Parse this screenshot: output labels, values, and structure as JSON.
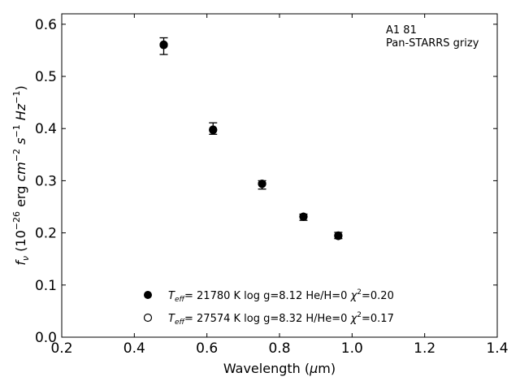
{
  "chart_data": {
    "type": "scatter",
    "annotation": {
      "line1": "A1 81",
      "line2": "Pan-STARRS grizy"
    },
    "xlabel": {
      "pre": "Wavelength (",
      "mu": "μ",
      "post": "m)"
    },
    "ylabel": {
      "f": "f",
      "nu": "ν",
      "unit_a": " (10",
      "exp_a": "−26",
      "unit_b": " erg ",
      "cm": "cm",
      "exp_b": "−2",
      "s": "s",
      "exp_c": "−1",
      "hz": "Hz",
      "exp_d": "−1",
      "close": ")"
    },
    "xlim": [
      0.2,
      1.4
    ],
    "ylim": [
      0.0,
      0.62
    ],
    "x_ticks": [
      0.2,
      0.4,
      0.6,
      0.8,
      1.0,
      1.2,
      1.4
    ],
    "x_tick_labels": [
      "0.2",
      "0.4",
      "0.6",
      "0.8",
      "1.0",
      "1.2",
      "1.4"
    ],
    "y_ticks": [
      0.0,
      0.1,
      0.2,
      0.3,
      0.4,
      0.5,
      0.6
    ],
    "y_tick_labels": [
      "0.0",
      "0.1",
      "0.2",
      "0.3",
      "0.4",
      "0.5",
      "0.6"
    ],
    "grid": false,
    "legend_placement": "bottom-center",
    "observed": {
      "x": [
        0.481,
        0.617,
        0.752,
        0.866,
        0.962
      ],
      "y": [
        0.558,
        0.4,
        0.292,
        0.23,
        0.195
      ],
      "err": [
        0.016,
        0.011,
        0.008,
        0.006,
        0.006
      ]
    },
    "series": [
      {
        "marker": "filled",
        "x": [
          0.481,
          0.617,
          0.752,
          0.866,
          0.962
        ],
        "y": [
          0.56,
          0.397,
          0.294,
          0.231,
          0.195
        ],
        "legend": {
          "t": "T",
          "eff": "eff",
          "text": "= 21780 K  log g=8.12  He/H=0  ",
          "chi": "χ",
          "sq": "2",
          "chi_val": "=0.20"
        }
      },
      {
        "marker": "open",
        "x": [
          0.481,
          0.617,
          0.752,
          0.866,
          0.962
        ],
        "y": [
          0.561,
          0.398,
          0.294,
          0.231,
          0.194
        ],
        "legend": {
          "t": "T",
          "eff": "eff",
          "text": "= 27574 K  log g=8.32  H/He=0  ",
          "chi": "χ",
          "sq": "2",
          "chi_val": "=0.17"
        }
      }
    ]
  }
}
